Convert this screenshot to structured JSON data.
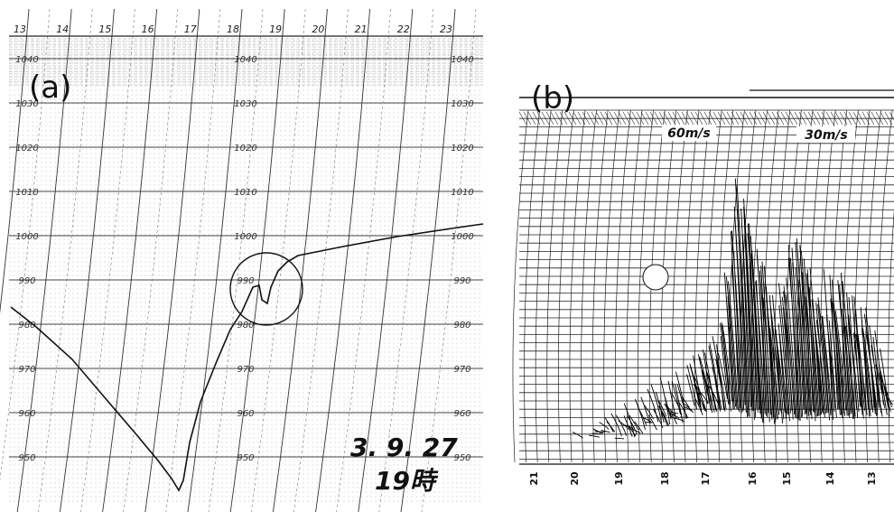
{
  "panel_a": {
    "label": "(a)",
    "hour_labels": [
      "13",
      "14",
      "15",
      "16",
      "17",
      "18",
      "19",
      "20",
      "21",
      "22",
      "23"
    ],
    "pressure_labels": [
      "1040",
      "1030",
      "1020",
      "1010",
      "1000",
      "990",
      "980",
      "970",
      "960",
      "950"
    ],
    "annotation": {
      "date": "3. 9. 27",
      "time": "19時"
    }
  },
  "panel_b": {
    "label": "(b)",
    "speed_labels": [
      "60m/s",
      "30m/s"
    ],
    "hour_labels": [
      "21",
      "20",
      "19",
      "18",
      "17",
      "16",
      "15",
      "14",
      "13"
    ]
  }
}
